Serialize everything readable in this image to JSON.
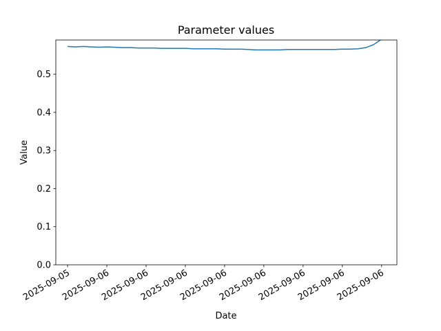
{
  "chart_data": {
    "type": "line",
    "title": "Parameter values",
    "xlabel": "Date",
    "ylabel": "Value",
    "x": [
      0,
      0.2,
      0.4,
      0.6,
      0.8,
      1.0,
      1.2,
      1.4,
      1.6,
      1.8,
      2.0,
      2.2,
      2.4,
      2.6,
      2.8,
      3.0,
      3.2,
      3.4,
      3.6,
      3.8,
      4.0,
      4.2,
      4.4,
      4.6,
      4.8,
      5.0,
      5.2,
      5.4,
      5.6,
      5.8,
      6.0,
      6.2,
      6.4,
      6.6,
      6.8,
      7.0,
      7.2,
      7.4,
      7.6,
      7.8,
      8.0
    ],
    "series": [
      {
        "name": "Value",
        "color": "#1f77b4",
        "values": [
          0.573,
          0.572,
          0.573,
          0.572,
          0.571,
          0.572,
          0.571,
          0.57,
          0.57,
          0.569,
          0.569,
          0.569,
          0.568,
          0.568,
          0.568,
          0.568,
          0.567,
          0.567,
          0.567,
          0.567,
          0.566,
          0.566,
          0.566,
          0.565,
          0.564,
          0.564,
          0.564,
          0.564,
          0.565,
          0.565,
          0.565,
          0.565,
          0.565,
          0.565,
          0.565,
          0.566,
          0.566,
          0.567,
          0.57,
          0.578,
          0.592
        ]
      }
    ],
    "xlim": [
      -0.3,
      8.39
    ],
    "xticks": [
      {
        "value": 0,
        "label": "2025-09-05"
      },
      {
        "value": 1,
        "label": "2025-09-06"
      },
      {
        "value": 2,
        "label": "2025-09-06"
      },
      {
        "value": 3,
        "label": "2025-09-06"
      },
      {
        "value": 4,
        "label": "2025-09-06"
      },
      {
        "value": 5,
        "label": "2025-09-06"
      },
      {
        "value": 6,
        "label": "2025-09-06"
      },
      {
        "value": 7,
        "label": "2025-09-06"
      },
      {
        "value": 8,
        "label": "2025-09-06"
      }
    ],
    "ylim": [
      0,
      0.59
    ],
    "yticks": [
      {
        "value": 0,
        "label": "0.0"
      },
      0.1,
      0.2,
      0.3,
      0.4,
      0.5
    ]
  }
}
